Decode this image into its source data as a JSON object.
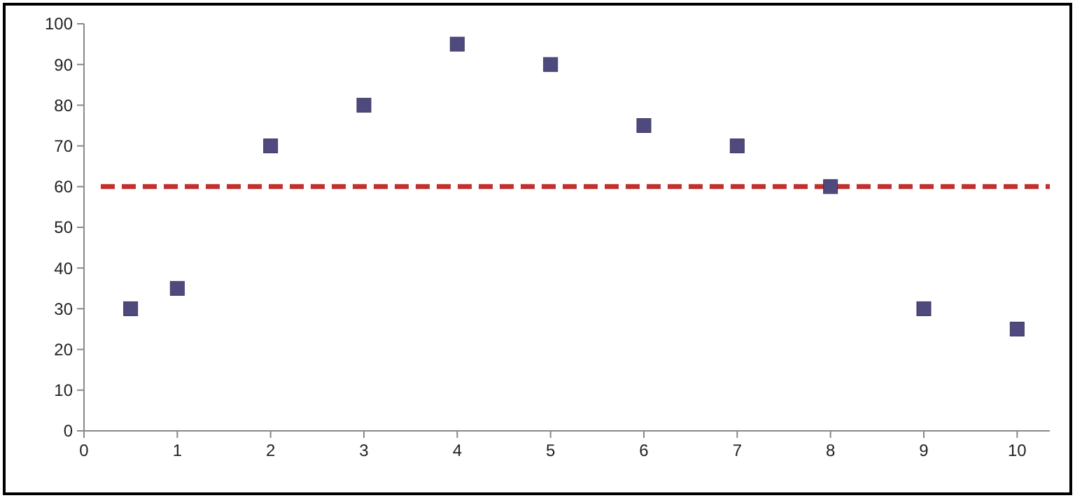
{
  "chart_data": {
    "type": "scatter",
    "x": [
      0.5,
      1,
      2,
      3,
      4,
      5,
      6,
      7,
      8,
      9,
      10
    ],
    "values": [
      30,
      35,
      70,
      80,
      95,
      90,
      75,
      70,
      60,
      30,
      25
    ],
    "color": "#4f4a7e",
    "marker": "square",
    "xlim": [
      0,
      10.35
    ],
    "xticks": [
      0,
      1,
      2,
      3,
      4,
      5,
      6,
      7,
      8,
      9,
      10
    ],
    "ylim": [
      0,
      100
    ],
    "yticks": [
      0,
      10,
      20,
      30,
      40,
      50,
      60,
      70,
      80,
      90,
      100
    ],
    "grid": false,
    "ref_lines": [
      {
        "axis": "y",
        "value": 60,
        "color": "#c0302c",
        "line_style": "dashed"
      }
    ]
  }
}
